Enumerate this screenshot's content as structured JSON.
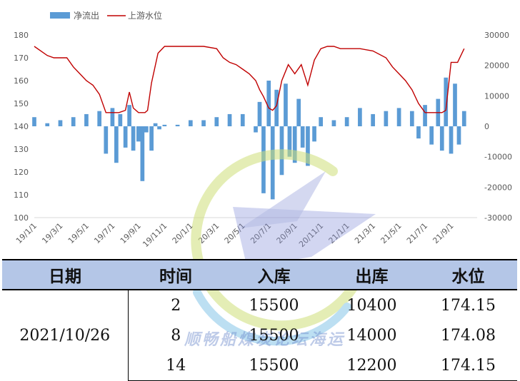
{
  "chart_data": {
    "type": "bar+line",
    "legend": [
      {
        "name": "净流出",
        "kind": "bar",
        "color": "#5b9bd5"
      },
      {
        "name": "上游水位",
        "kind": "line",
        "color": "#c00000"
      }
    ],
    "legend_position": "top-left",
    "x_tick_labels": [
      "19/1/1",
      "19/3/1",
      "19/5/1",
      "19/7/1",
      "19/9/1",
      "19/11/1",
      "20/1/1",
      "20/3/1",
      "20/5/1",
      "20/7/1",
      "20/9/1",
      "20/11/1",
      "21/1/1",
      "21/3/1",
      "21/5/1",
      "21/7/1",
      "21/9/1"
    ],
    "y_left": {
      "min": 100,
      "max": 180,
      "ticks": [
        "100",
        "110",
        "120",
        "130",
        "140",
        "150",
        "160",
        "170",
        "180"
      ]
    },
    "y_right": {
      "min": -30000,
      "max": 30000,
      "ticks": [
        "-30000",
        "-20000",
        "-10000",
        "0",
        "10000",
        "20000",
        "30000"
      ]
    },
    "grid": false,
    "water_level": {
      "x_month_index": [
        0,
        1,
        1.5,
        2,
        2.5,
        3,
        3.5,
        4,
        4.5,
        5,
        5.5,
        6,
        6.5,
        7,
        7.3,
        7.6,
        8,
        8.5,
        8.7,
        9,
        9.5,
        10,
        10.5,
        11,
        12,
        13,
        14,
        14.5,
        15,
        15.5,
        16,
        16.5,
        17,
        17.3,
        17.6,
        18,
        18.3,
        18.6,
        19,
        19.5,
        20,
        20.5,
        21,
        21.5,
        22,
        22.5,
        23,
        23.5,
        24,
        25,
        26,
        27,
        27.5,
        28,
        28.5,
        29,
        29.5,
        30,
        30.5,
        31,
        31.3,
        31.6,
        32,
        32.5,
        33
      ],
      "values": [
        175,
        171,
        170,
        170,
        170,
        166,
        163,
        160,
        158,
        154,
        146,
        146,
        146,
        147,
        155,
        148,
        146,
        146,
        147,
        159,
        172,
        175,
        175,
        175,
        175,
        175,
        174,
        170,
        168,
        167,
        165,
        163,
        160,
        156,
        153,
        148,
        147,
        149,
        160,
        167,
        163,
        167,
        158,
        169,
        174,
        175,
        175,
        174,
        174,
        174,
        173,
        170,
        166,
        163,
        160,
        156,
        150,
        146,
        146,
        146,
        146,
        147,
        168,
        168,
        174
      ]
    },
    "net_outflow": {
      "x_month_index": [
        0,
        1,
        2,
        3,
        4,
        5,
        5.5,
        6,
        6.3,
        6.6,
        7,
        7.3,
        7.6,
        8,
        8.3,
        8.6,
        9,
        9.3,
        9.6,
        10,
        11,
        12,
        13,
        14,
        15,
        16,
        17,
        17.3,
        17.6,
        18,
        18.3,
        18.6,
        19,
        19.3,
        19.6,
        20,
        20.3,
        20.6,
        21,
        21.5,
        22,
        23,
        24,
        25,
        26,
        27,
        28,
        29,
        29.5,
        30,
        30.5,
        31,
        31.3,
        31.6,
        32,
        32.3,
        32.6,
        33
      ],
      "values": [
        3000,
        1000,
        2000,
        3000,
        4000,
        5000,
        -9000,
        6000,
        -12000,
        4000,
        -7000,
        7000,
        -8000,
        -5000,
        -18000,
        -2000,
        -8000,
        1000,
        -1000,
        500,
        500,
        2000,
        2000,
        3000,
        4000,
        4000,
        -2000,
        8000,
        -22000,
        15000,
        -24000,
        12000,
        -16000,
        14000,
        -10000,
        -12000,
        9000,
        -7000,
        -13000,
        -5000,
        3000,
        2000,
        3000,
        6000,
        4000,
        5000,
        6000,
        5000,
        -4000,
        7000,
        -6000,
        9000,
        -8000,
        16000,
        -9000,
        14000,
        -6000,
        5000
      ]
    }
  },
  "table": {
    "headers": [
      "日期",
      "时间",
      "入库",
      "出库",
      "水位"
    ],
    "date": "2021/10/26",
    "rows": [
      {
        "time": "2",
        "inflow": "15500",
        "outflow": "10400",
        "level": "174.15"
      },
      {
        "time": "8",
        "inflow": "15500",
        "outflow": "14000",
        "level": "174.08"
      },
      {
        "time": "14",
        "inflow": "15500",
        "outflow": "12200",
        "level": "174.15"
      }
    ]
  },
  "watermark": {
    "text": "顺畅船煤炭论坛海运"
  }
}
